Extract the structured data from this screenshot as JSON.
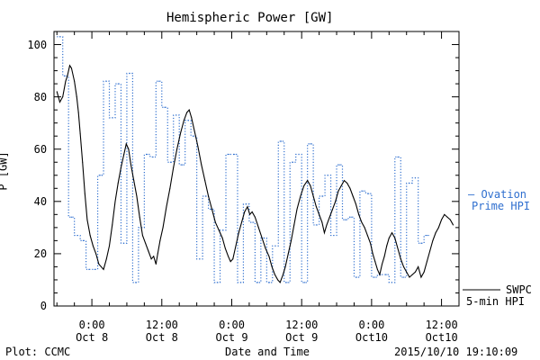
{
  "chart_data": {
    "type": "line",
    "title": "Hemispheric Power [GW]",
    "ylabel": "P [GW]",
    "xlabel": "Date and Time",
    "ylim": [
      0,
      105
    ],
    "yticks": [
      0,
      20,
      40,
      60,
      80,
      100
    ],
    "x_tick_labels": [
      {
        "time": "0:00",
        "date": "Oct 8"
      },
      {
        "time": "12:00",
        "date": "Oct 8"
      },
      {
        "time": "0:00",
        "date": "Oct 9"
      },
      {
        "time": "12:00",
        "date": "Oct 9"
      },
      {
        "time": "0:00",
        "date": "Oct10"
      },
      {
        "time": "12:00",
        "date": "Oct10"
      }
    ],
    "series": [
      {
        "name": "SWPC 5-min HPI",
        "color": "#000000",
        "style": "solid",
        "points": [
          [
            -6.0,
            82
          ],
          [
            -5.5,
            78
          ],
          [
            -5.0,
            80
          ],
          [
            -4.5,
            86
          ],
          [
            -4.2,
            88
          ],
          [
            -3.8,
            92
          ],
          [
            -3.5,
            91
          ],
          [
            -3.0,
            86
          ],
          [
            -2.6,
            80
          ],
          [
            -2.3,
            74
          ],
          [
            -2.0,
            66
          ],
          [
            -1.6,
            55
          ],
          [
            -1.2,
            43
          ],
          [
            -0.8,
            33
          ],
          [
            -0.3,
            27
          ],
          [
            0.2,
            23
          ],
          [
            0.7,
            20
          ],
          [
            1.2,
            16
          ],
          [
            1.6,
            15
          ],
          [
            2.0,
            14
          ],
          [
            2.5,
            18
          ],
          [
            3.0,
            23
          ],
          [
            3.5,
            31
          ],
          [
            4.0,
            40
          ],
          [
            4.5,
            47
          ],
          [
            5.0,
            53
          ],
          [
            5.5,
            58
          ],
          [
            5.9,
            62
          ],
          [
            6.3,
            60
          ],
          [
            6.7,
            54
          ],
          [
            7.2,
            48
          ],
          [
            7.7,
            42
          ],
          [
            8.2,
            34
          ],
          [
            8.7,
            27
          ],
          [
            9.2,
            24
          ],
          [
            9.7,
            21
          ],
          [
            10.2,
            18
          ],
          [
            10.6,
            19
          ],
          [
            11.0,
            16
          ],
          [
            11.3,
            20
          ],
          [
            11.7,
            25
          ],
          [
            12.2,
            30
          ],
          [
            12.8,
            38
          ],
          [
            13.4,
            45
          ],
          [
            14.0,
            53
          ],
          [
            14.6,
            60
          ],
          [
            15.2,
            66
          ],
          [
            15.8,
            71
          ],
          [
            16.3,
            74
          ],
          [
            16.7,
            75
          ],
          [
            17.1,
            72
          ],
          [
            17.6,
            67
          ],
          [
            18.2,
            61
          ],
          [
            18.8,
            54
          ],
          [
            19.4,
            48
          ],
          [
            20.0,
            42
          ],
          [
            20.6,
            37
          ],
          [
            21.2,
            32
          ],
          [
            21.8,
            29
          ],
          [
            22.4,
            26
          ],
          [
            22.9,
            22
          ],
          [
            23.4,
            19
          ],
          [
            23.8,
            17
          ],
          [
            24.2,
            18
          ],
          [
            24.7,
            23
          ],
          [
            25.2,
            28
          ],
          [
            25.7,
            32
          ],
          [
            26.2,
            36
          ],
          [
            26.7,
            38
          ],
          [
            27.1,
            35
          ],
          [
            27.5,
            36
          ],
          [
            28.0,
            34
          ],
          [
            28.6,
            30
          ],
          [
            29.2,
            26
          ],
          [
            29.8,
            22
          ],
          [
            30.4,
            19
          ],
          [
            30.9,
            15
          ],
          [
            31.4,
            12
          ],
          [
            31.9,
            10
          ],
          [
            32.3,
            9
          ],
          [
            32.8,
            12
          ],
          [
            33.2,
            15
          ],
          [
            33.7,
            20
          ],
          [
            34.2,
            25
          ],
          [
            34.7,
            31
          ],
          [
            35.2,
            37
          ],
          [
            35.8,
            42
          ],
          [
            36.4,
            46
          ],
          [
            37.0,
            48
          ],
          [
            37.5,
            46
          ],
          [
            38.0,
            42
          ],
          [
            38.5,
            38
          ],
          [
            39.0,
            35
          ],
          [
            39.5,
            32
          ],
          [
            39.9,
            28
          ],
          [
            40.3,
            31
          ],
          [
            40.8,
            34
          ],
          [
            41.3,
            37
          ],
          [
            41.8,
            40
          ],
          [
            42.3,
            44
          ],
          [
            42.8,
            46
          ],
          [
            43.3,
            48
          ],
          [
            43.8,
            47
          ],
          [
            44.3,
            45
          ],
          [
            44.8,
            42
          ],
          [
            45.3,
            39
          ],
          [
            45.8,
            35
          ],
          [
            46.3,
            32
          ],
          [
            46.8,
            30
          ],
          [
            47.3,
            27
          ],
          [
            47.8,
            24
          ],
          [
            48.2,
            20
          ],
          [
            48.6,
            17
          ],
          [
            49.0,
            14
          ],
          [
            49.4,
            12
          ],
          [
            49.8,
            16
          ],
          [
            50.2,
            19
          ],
          [
            50.6,
            23
          ],
          [
            51.0,
            26
          ],
          [
            51.5,
            28
          ],
          [
            52.0,
            26
          ],
          [
            52.5,
            22
          ],
          [
            53.0,
            18
          ],
          [
            53.5,
            15
          ],
          [
            54.0,
            13
          ],
          [
            54.5,
            11
          ],
          [
            55.0,
            12
          ],
          [
            55.5,
            13
          ],
          [
            56.0,
            15
          ],
          [
            56.5,
            11
          ],
          [
            57.0,
            13
          ],
          [
            57.5,
            17
          ],
          [
            58.0,
            21
          ],
          [
            58.5,
            25
          ],
          [
            59.0,
            28
          ],
          [
            59.5,
            30
          ],
          [
            60.0,
            33
          ],
          [
            60.5,
            35
          ],
          [
            61.0,
            34
          ],
          [
            61.5,
            33
          ],
          [
            62.0,
            31
          ]
        ]
      },
      {
        "name": "Ovation Prime HPI",
        "color": "#2f6fcf",
        "style": "dotted-step",
        "points": [
          [
            -6.0,
            103
          ],
          [
            -5.0,
            88
          ],
          [
            -4.0,
            34
          ],
          [
            -3.0,
            27
          ],
          [
            -2.0,
            25
          ],
          [
            -1.0,
            14
          ],
          [
            0.0,
            14
          ],
          [
            1.0,
            50
          ],
          [
            2.0,
            86
          ],
          [
            3.0,
            72
          ],
          [
            4.0,
            85
          ],
          [
            5.0,
            24
          ],
          [
            6.0,
            89
          ],
          [
            7.0,
            9
          ],
          [
            8.0,
            30
          ],
          [
            9.0,
            58
          ],
          [
            10.0,
            57
          ],
          [
            11.0,
            86
          ],
          [
            12.0,
            76
          ],
          [
            13.0,
            55
          ],
          [
            14.0,
            73
          ],
          [
            15.0,
            54
          ],
          [
            16.0,
            71
          ],
          [
            17.0,
            65
          ],
          [
            18.0,
            18
          ],
          [
            19.0,
            42
          ],
          [
            20.0,
            37
          ],
          [
            21.0,
            9
          ],
          [
            22.0,
            29
          ],
          [
            23.0,
            58
          ],
          [
            24.0,
            58
          ],
          [
            25.0,
            9
          ],
          [
            26.0,
            39
          ],
          [
            27.0,
            32
          ],
          [
            28.0,
            9
          ],
          [
            29.0,
            26
          ],
          [
            30.0,
            9
          ],
          [
            31.0,
            23
          ],
          [
            32.0,
            63
          ],
          [
            33.0,
            9
          ],
          [
            34.0,
            55
          ],
          [
            35.0,
            58
          ],
          [
            36.0,
            9
          ],
          [
            37.0,
            62
          ],
          [
            38.0,
            31
          ],
          [
            39.0,
            42
          ],
          [
            40.0,
            50
          ],
          [
            41.0,
            27
          ],
          [
            42.0,
            54
          ],
          [
            43.0,
            33
          ],
          [
            44.0,
            34
          ],
          [
            45.0,
            11
          ],
          [
            46.0,
            44
          ],
          [
            47.0,
            43
          ],
          [
            48.0,
            11
          ],
          [
            49.0,
            12
          ],
          [
            50.0,
            12
          ],
          [
            51.0,
            9
          ],
          [
            52.0,
            57
          ],
          [
            53.0,
            11
          ],
          [
            54.0,
            47
          ],
          [
            55.0,
            49
          ],
          [
            56.0,
            24
          ],
          [
            57.0,
            27
          ]
        ]
      }
    ],
    "legend": {
      "ovation": {
        "line1": "— Ovation",
        "line2": "Prime HPI"
      },
      "swpc": {
        "line1": "SWPC",
        "line2": "5-min HPI"
      }
    }
  },
  "footer": {
    "plot_source": "Plot: CCMC",
    "timestamp": "2015/10/10 19:10:09"
  }
}
